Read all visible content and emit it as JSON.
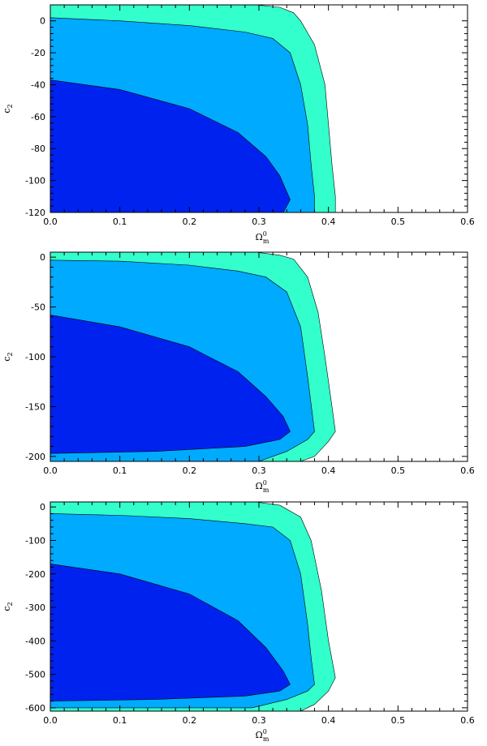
{
  "chart_data": [
    {
      "type": "area",
      "xlabel": "Ω_m^0",
      "ylabel": "c_2",
      "xlim": [
        0.0,
        0.6
      ],
      "ylim": [
        -120,
        10
      ],
      "x_ticks": [
        0.0,
        0.1,
        0.2,
        0.3,
        0.4,
        0.5,
        0.6
      ],
      "x_tick_labels": [
        "0.0",
        "0.1",
        "0.2",
        "0.3",
        "0.4",
        "0.5",
        "0.6"
      ],
      "y_ticks": [
        0,
        -20,
        -40,
        -60,
        -80,
        -100,
        -120
      ],
      "y_tick_labels": [
        "0",
        "-20",
        "-40",
        "-60",
        "-80",
        "-100",
        "-120"
      ],
      "regions": [
        {
          "level": "outer",
          "color": "#33ffcc",
          "boundary": [
            [
              0.0,
              10
            ],
            [
              0.295,
              10
            ],
            [
              0.33,
              8.5
            ],
            [
              0.35,
              5
            ],
            [
              0.36,
              0
            ],
            [
              0.38,
              -15
            ],
            [
              0.395,
              -40
            ],
            [
              0.4,
              -65
            ],
            [
              0.405,
              -90
            ],
            [
              0.41,
              -110
            ],
            [
              0.41,
              -120
            ],
            [
              0.0,
              -120
            ]
          ]
        },
        {
          "level": "middle",
          "color": "#00aaff",
          "boundary": [
            [
              0.0,
              2
            ],
            [
              0.1,
              0
            ],
            [
              0.2,
              -3
            ],
            [
              0.28,
              -7
            ],
            [
              0.32,
              -11
            ],
            [
              0.345,
              -20
            ],
            [
              0.36,
              -40
            ],
            [
              0.37,
              -65
            ],
            [
              0.375,
              -90
            ],
            [
              0.38,
              -110
            ],
            [
              0.38,
              -120
            ],
            [
              0.0,
              -120
            ]
          ]
        },
        {
          "level": "inner",
          "color": "#0022ee",
          "boundary": [
            [
              0.0,
              -37
            ],
            [
              0.1,
              -43
            ],
            [
              0.2,
              -55
            ],
            [
              0.27,
              -70
            ],
            [
              0.31,
              -85
            ],
            [
              0.33,
              -97
            ],
            [
              0.345,
              -112
            ],
            [
              0.335,
              -120
            ],
            [
              0.0,
              -120
            ]
          ]
        }
      ]
    },
    {
      "type": "area",
      "xlabel": "Ω_m^0",
      "ylabel": "c_2",
      "xlim": [
        0.0,
        0.6
      ],
      "ylim": [
        -205,
        5
      ],
      "x_ticks": [
        0.0,
        0.1,
        0.2,
        0.3,
        0.4,
        0.5,
        0.6
      ],
      "x_tick_labels": [
        "0.0",
        "0.1",
        "0.2",
        "0.3",
        "0.4",
        "0.5",
        "0.6"
      ],
      "y_ticks": [
        0,
        -50,
        -100,
        -150,
        -200
      ],
      "y_tick_labels": [
        "0",
        "-50",
        "-100",
        "-150",
        "-200"
      ],
      "regions": [
        {
          "level": "outer",
          "color": "#33ffcc",
          "boundary": [
            [
              0.0,
              5
            ],
            [
              0.295,
              5
            ],
            [
              0.33,
              2
            ],
            [
              0.35,
              -2
            ],
            [
              0.37,
              -20
            ],
            [
              0.385,
              -55
            ],
            [
              0.395,
              -100
            ],
            [
              0.405,
              -150
            ],
            [
              0.41,
              -175
            ],
            [
              0.4,
              -185
            ],
            [
              0.38,
              -200
            ],
            [
              0.36,
              -205
            ],
            [
              0.0,
              -205
            ]
          ]
        },
        {
          "level": "middle",
          "color": "#00aaff",
          "boundary": [
            [
              0.0,
              -3
            ],
            [
              0.1,
              -4
            ],
            [
              0.2,
              -8
            ],
            [
              0.27,
              -14
            ],
            [
              0.31,
              -20
            ],
            [
              0.34,
              -35
            ],
            [
              0.36,
              -70
            ],
            [
              0.37,
              -120
            ],
            [
              0.38,
              -175
            ],
            [
              0.37,
              -183
            ],
            [
              0.34,
              -195
            ],
            [
              0.3,
              -205
            ],
            [
              0.0,
              -205
            ]
          ]
        },
        {
          "level": "inner",
          "color": "#0022ee",
          "boundary": [
            [
              0.0,
              -58
            ],
            [
              0.1,
              -70
            ],
            [
              0.2,
              -90
            ],
            [
              0.27,
              -115
            ],
            [
              0.31,
              -140
            ],
            [
              0.335,
              -160
            ],
            [
              0.345,
              -175
            ],
            [
              0.33,
              -183
            ],
            [
              0.28,
              -190
            ],
            [
              0.15,
              -195
            ],
            [
              0.0,
              -197
            ]
          ]
        }
      ]
    },
    {
      "type": "area",
      "xlabel": "Ω_m^0",
      "ylabel": "c_2",
      "xlim": [
        0.0,
        0.6
      ],
      "ylim": [
        -610,
        15
      ],
      "x_ticks": [
        0.0,
        0.1,
        0.2,
        0.3,
        0.4,
        0.5,
        0.6
      ],
      "x_tick_labels": [
        "0.0",
        "0.1",
        "0.2",
        "0.3",
        "0.4",
        "0.5",
        "0.6"
      ],
      "y_ticks": [
        0,
        -100,
        -200,
        -300,
        -400,
        -500,
        -600
      ],
      "y_tick_labels": [
        "0",
        "-100",
        "-200",
        "-300",
        "-400",
        "-500",
        "-600"
      ],
      "regions": [
        {
          "level": "outer",
          "color": "#33ffcc",
          "boundary": [
            [
              0.0,
              15
            ],
            [
              0.295,
              15
            ],
            [
              0.33,
              5
            ],
            [
              0.36,
              -30
            ],
            [
              0.375,
              -100
            ],
            [
              0.39,
              -250
            ],
            [
              0.4,
              -400
            ],
            [
              0.41,
              -510
            ],
            [
              0.4,
              -550
            ],
            [
              0.38,
              -590
            ],
            [
              0.36,
              -610
            ],
            [
              0.0,
              -610
            ]
          ]
        },
        {
          "level": "middle",
          "color": "#00aaff",
          "boundary": [
            [
              0.0,
              -20
            ],
            [
              0.1,
              -25
            ],
            [
              0.2,
              -35
            ],
            [
              0.28,
              -50
            ],
            [
              0.32,
              -60
            ],
            [
              0.345,
              -100
            ],
            [
              0.36,
              -200
            ],
            [
              0.37,
              -350
            ],
            [
              0.375,
              -450
            ],
            [
              0.38,
              -530
            ],
            [
              0.37,
              -550
            ],
            [
              0.34,
              -575
            ],
            [
              0.29,
              -600
            ],
            [
              0.0,
              -600
            ]
          ]
        },
        {
          "level": "inner",
          "color": "#0022ee",
          "boundary": [
            [
              0.0,
              -170
            ],
            [
              0.1,
              -200
            ],
            [
              0.2,
              -260
            ],
            [
              0.27,
              -340
            ],
            [
              0.31,
              -420
            ],
            [
              0.335,
              -490
            ],
            [
              0.345,
              -530
            ],
            [
              0.33,
              -550
            ],
            [
              0.28,
              -565
            ],
            [
              0.15,
              -575
            ],
            [
              0.0,
              -580
            ]
          ]
        }
      ]
    }
  ]
}
